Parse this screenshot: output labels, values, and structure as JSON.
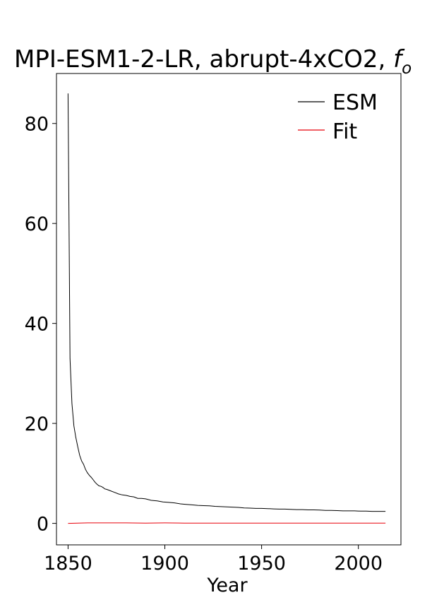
{
  "chart_data": {
    "type": "line",
    "title": "MPI-ESM1-2-LR, abrupt-4xCO2, ",
    "title_symbol": "f",
    "title_subscript": "o",
    "xlabel": "Year",
    "ylabel": "",
    "xlim": [
      1844,
      2022
    ],
    "ylim": [
      -4.3,
      90
    ],
    "xticks": [
      1850,
      1900,
      1950,
      2000
    ],
    "yticks": [
      0,
      20,
      40,
      60,
      80
    ],
    "legend_position": "top-right",
    "series": [
      {
        "name": "ESM",
        "color": "#000000",
        "x": [
          1850,
          1851,
          1852,
          1853,
          1854,
          1855,
          1856,
          1857,
          1858,
          1859,
          1860,
          1861,
          1862,
          1863,
          1864,
          1865,
          1866,
          1867,
          1868,
          1869,
          1870,
          1872,
          1874,
          1876,
          1878,
          1880,
          1882,
          1884,
          1886,
          1888,
          1890,
          1893,
          1896,
          1899,
          1902,
          1905,
          1908,
          1911,
          1914,
          1917,
          1920,
          1923,
          1926,
          1929,
          1932,
          1935,
          1938,
          1941,
          1944,
          1947,
          1950,
          1953,
          1956,
          1959,
          1962,
          1965,
          1968,
          1971,
          1974,
          1977,
          1980,
          1983,
          1986,
          1989,
          1992,
          1995,
          1998,
          2001,
          2004,
          2007,
          2010,
          2014
        ],
        "y": [
          86,
          33,
          24,
          19.5,
          17.2,
          15.3,
          13.6,
          12.5,
          11.8,
          10.8,
          10.1,
          9.6,
          9.2,
          8.7,
          8.2,
          7.8,
          7.5,
          7.4,
          7.2,
          6.9,
          6.8,
          6.5,
          6.2,
          5.9,
          5.7,
          5.6,
          5.4,
          5.3,
          5.0,
          5.0,
          4.9,
          4.6,
          4.5,
          4.3,
          4.2,
          4.1,
          3.9,
          3.8,
          3.7,
          3.6,
          3.55,
          3.5,
          3.4,
          3.35,
          3.3,
          3.25,
          3.2,
          3.1,
          3.05,
          3.0,
          3.0,
          2.95,
          2.9,
          2.85,
          2.85,
          2.8,
          2.75,
          2.75,
          2.7,
          2.7,
          2.65,
          2.6,
          2.6,
          2.55,
          2.5,
          2.5,
          2.5,
          2.45,
          2.45,
          2.4,
          2.4,
          2.4
        ]
      },
      {
        "name": "Fit",
        "color": "#e8000b",
        "x": [
          1850,
          1860,
          1870,
          1880,
          1890,
          1900,
          1910,
          1920,
          1930,
          1940,
          1950,
          1960,
          1970,
          1980,
          1990,
          2000,
          2014
        ],
        "y": [
          0.0,
          0.1,
          0.1,
          0.1,
          0.05,
          0.1,
          0.05,
          0.05,
          0.05,
          0.05,
          0.05,
          0.05,
          0.05,
          0.05,
          0.05,
          0.05,
          0.05
        ]
      }
    ]
  }
}
